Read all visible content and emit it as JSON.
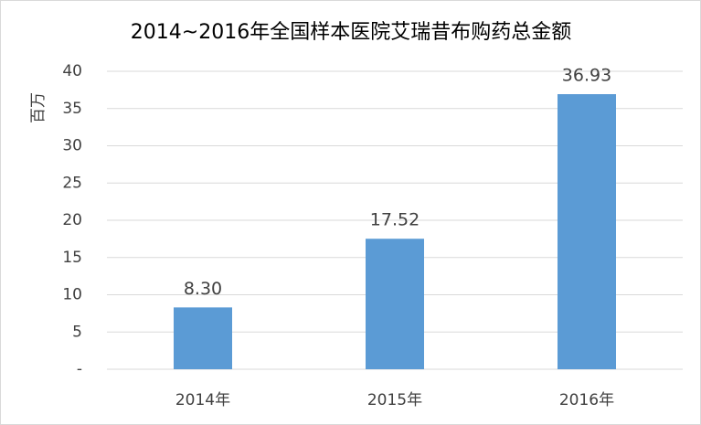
{
  "chart_data": {
    "type": "bar",
    "title": "2014~2016年全国样本医院艾瑞昔布购药总金额",
    "y_label": "百万",
    "categories": [
      "2014年",
      "2015年",
      "2016年"
    ],
    "values": [
      8.3,
      17.52,
      36.93
    ],
    "value_labels": [
      "8.30",
      "17.52",
      "36.93"
    ],
    "color": "#5b9bd5",
    "ylim": [
      0,
      40
    ],
    "yticks": [
      {
        "value": 0,
        "label": "-"
      },
      5,
      10,
      15,
      20,
      25,
      30,
      35,
      40
    ],
    "grid": true
  }
}
